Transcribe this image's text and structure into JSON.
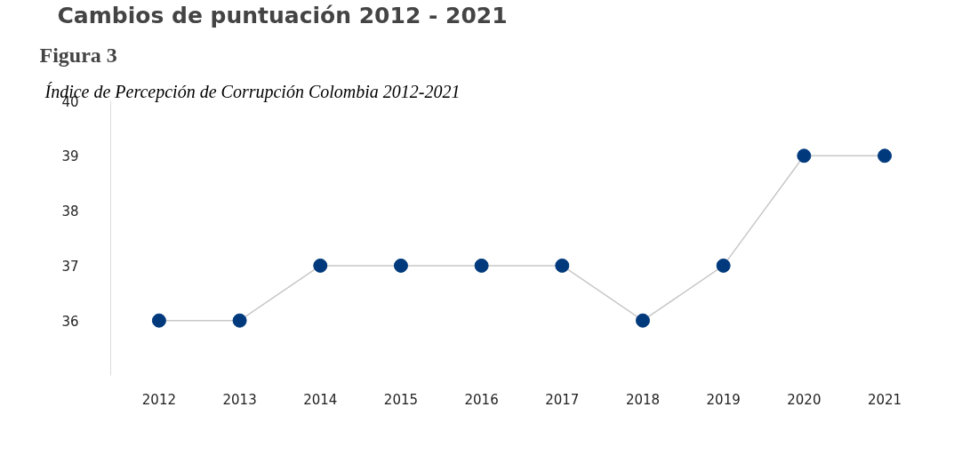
{
  "chart_data": {
    "type": "line",
    "title": "Cambios de puntuación 2012 - 2021",
    "subtitle": "Figura 3",
    "annotations": [
      "Índice de Percepción de Corrupción Colombia 2012-2021"
    ],
    "categories": [
      "2012",
      "2013",
      "2014",
      "2015",
      "2016",
      "2017",
      "2018",
      "2019",
      "2020",
      "2021"
    ],
    "series": [
      {
        "color": "#003a7d",
        "values": [
          36,
          36,
          37,
          37,
          37,
          37,
          36,
          37,
          39,
          39
        ]
      }
    ],
    "ylim": [
      35,
      40
    ],
    "yticks": [
      36,
      37,
      38,
      39,
      40
    ],
    "grid": false,
    "marker": "circle",
    "line_style": "solid"
  }
}
